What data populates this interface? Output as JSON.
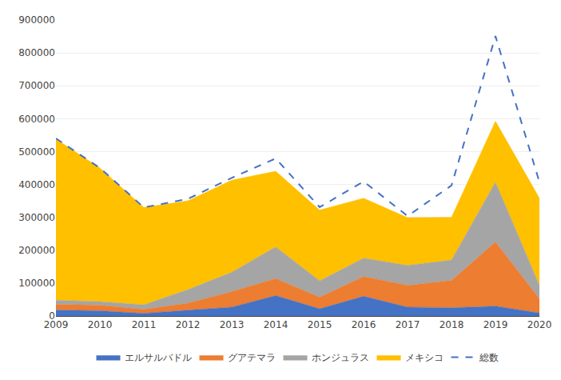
{
  "chart_data": {
    "type": "area",
    "stacked": true,
    "x": [
      2009,
      2010,
      2011,
      2012,
      2013,
      2014,
      2015,
      2016,
      2017,
      2018,
      2019,
      2020
    ],
    "series": [
      {
        "name": "エルサルバドル",
        "color": "#4472c4",
        "values": [
          18000,
          16000,
          8000,
          17000,
          27000,
          62000,
          22000,
          60000,
          27000,
          25000,
          30000,
          9000
        ]
      },
      {
        "name": "グアテマラ",
        "color": "#ed7d31",
        "values": [
          17000,
          17000,
          12000,
          22000,
          47000,
          52000,
          35000,
          60000,
          66000,
          83000,
          195000,
          43000
        ]
      },
      {
        "name": "ホンジュラス",
        "color": "#a5a5a5",
        "values": [
          13000,
          11000,
          14000,
          41000,
          59000,
          96000,
          50000,
          56000,
          61000,
          62000,
          182000,
          41000
        ]
      },
      {
        "name": "メキシコ",
        "color": "#ffc000",
        "values": [
          490000,
          406000,
          296000,
          270000,
          280000,
          230000,
          215000,
          182000,
          145000,
          130000,
          185000,
          265000
        ]
      },
      {
        "name": "総数",
        "color": "#4472c4",
        "type": "line",
        "line_style": "dashed",
        "values": [
          540000,
          450000,
          330000,
          356000,
          420000,
          479000,
          331000,
          409000,
          304000,
          397000,
          851000,
          407000
        ]
      }
    ],
    "xlim": [
      2009,
      2020
    ],
    "xticks": [
      2009,
      2010,
      2011,
      2012,
      2013,
      2014,
      2015,
      2016,
      2017,
      2018,
      2019,
      2020
    ],
    "ylim": [
      0,
      900000
    ],
    "yticks": [
      0,
      100000,
      200000,
      300000,
      400000,
      500000,
      600000,
      700000,
      800000,
      900000
    ],
    "grid": true,
    "legend": "bottom"
  }
}
